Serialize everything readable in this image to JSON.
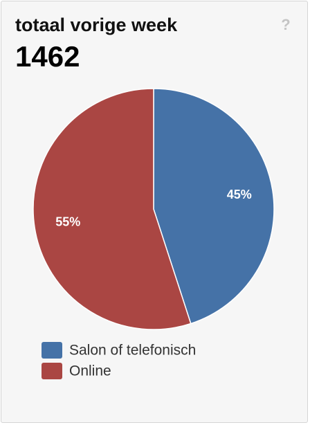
{
  "chart_data": {
    "type": "pie",
    "title": "totaal vorige week",
    "total": 1462,
    "help_icon": "?",
    "categories": [
      "Salon of telefonisch",
      "Online"
    ],
    "values": [
      45,
      55
    ],
    "value_labels": [
      "45%",
      "55%"
    ],
    "colors": [
      "#4572a7",
      "#aa4643"
    ]
  }
}
